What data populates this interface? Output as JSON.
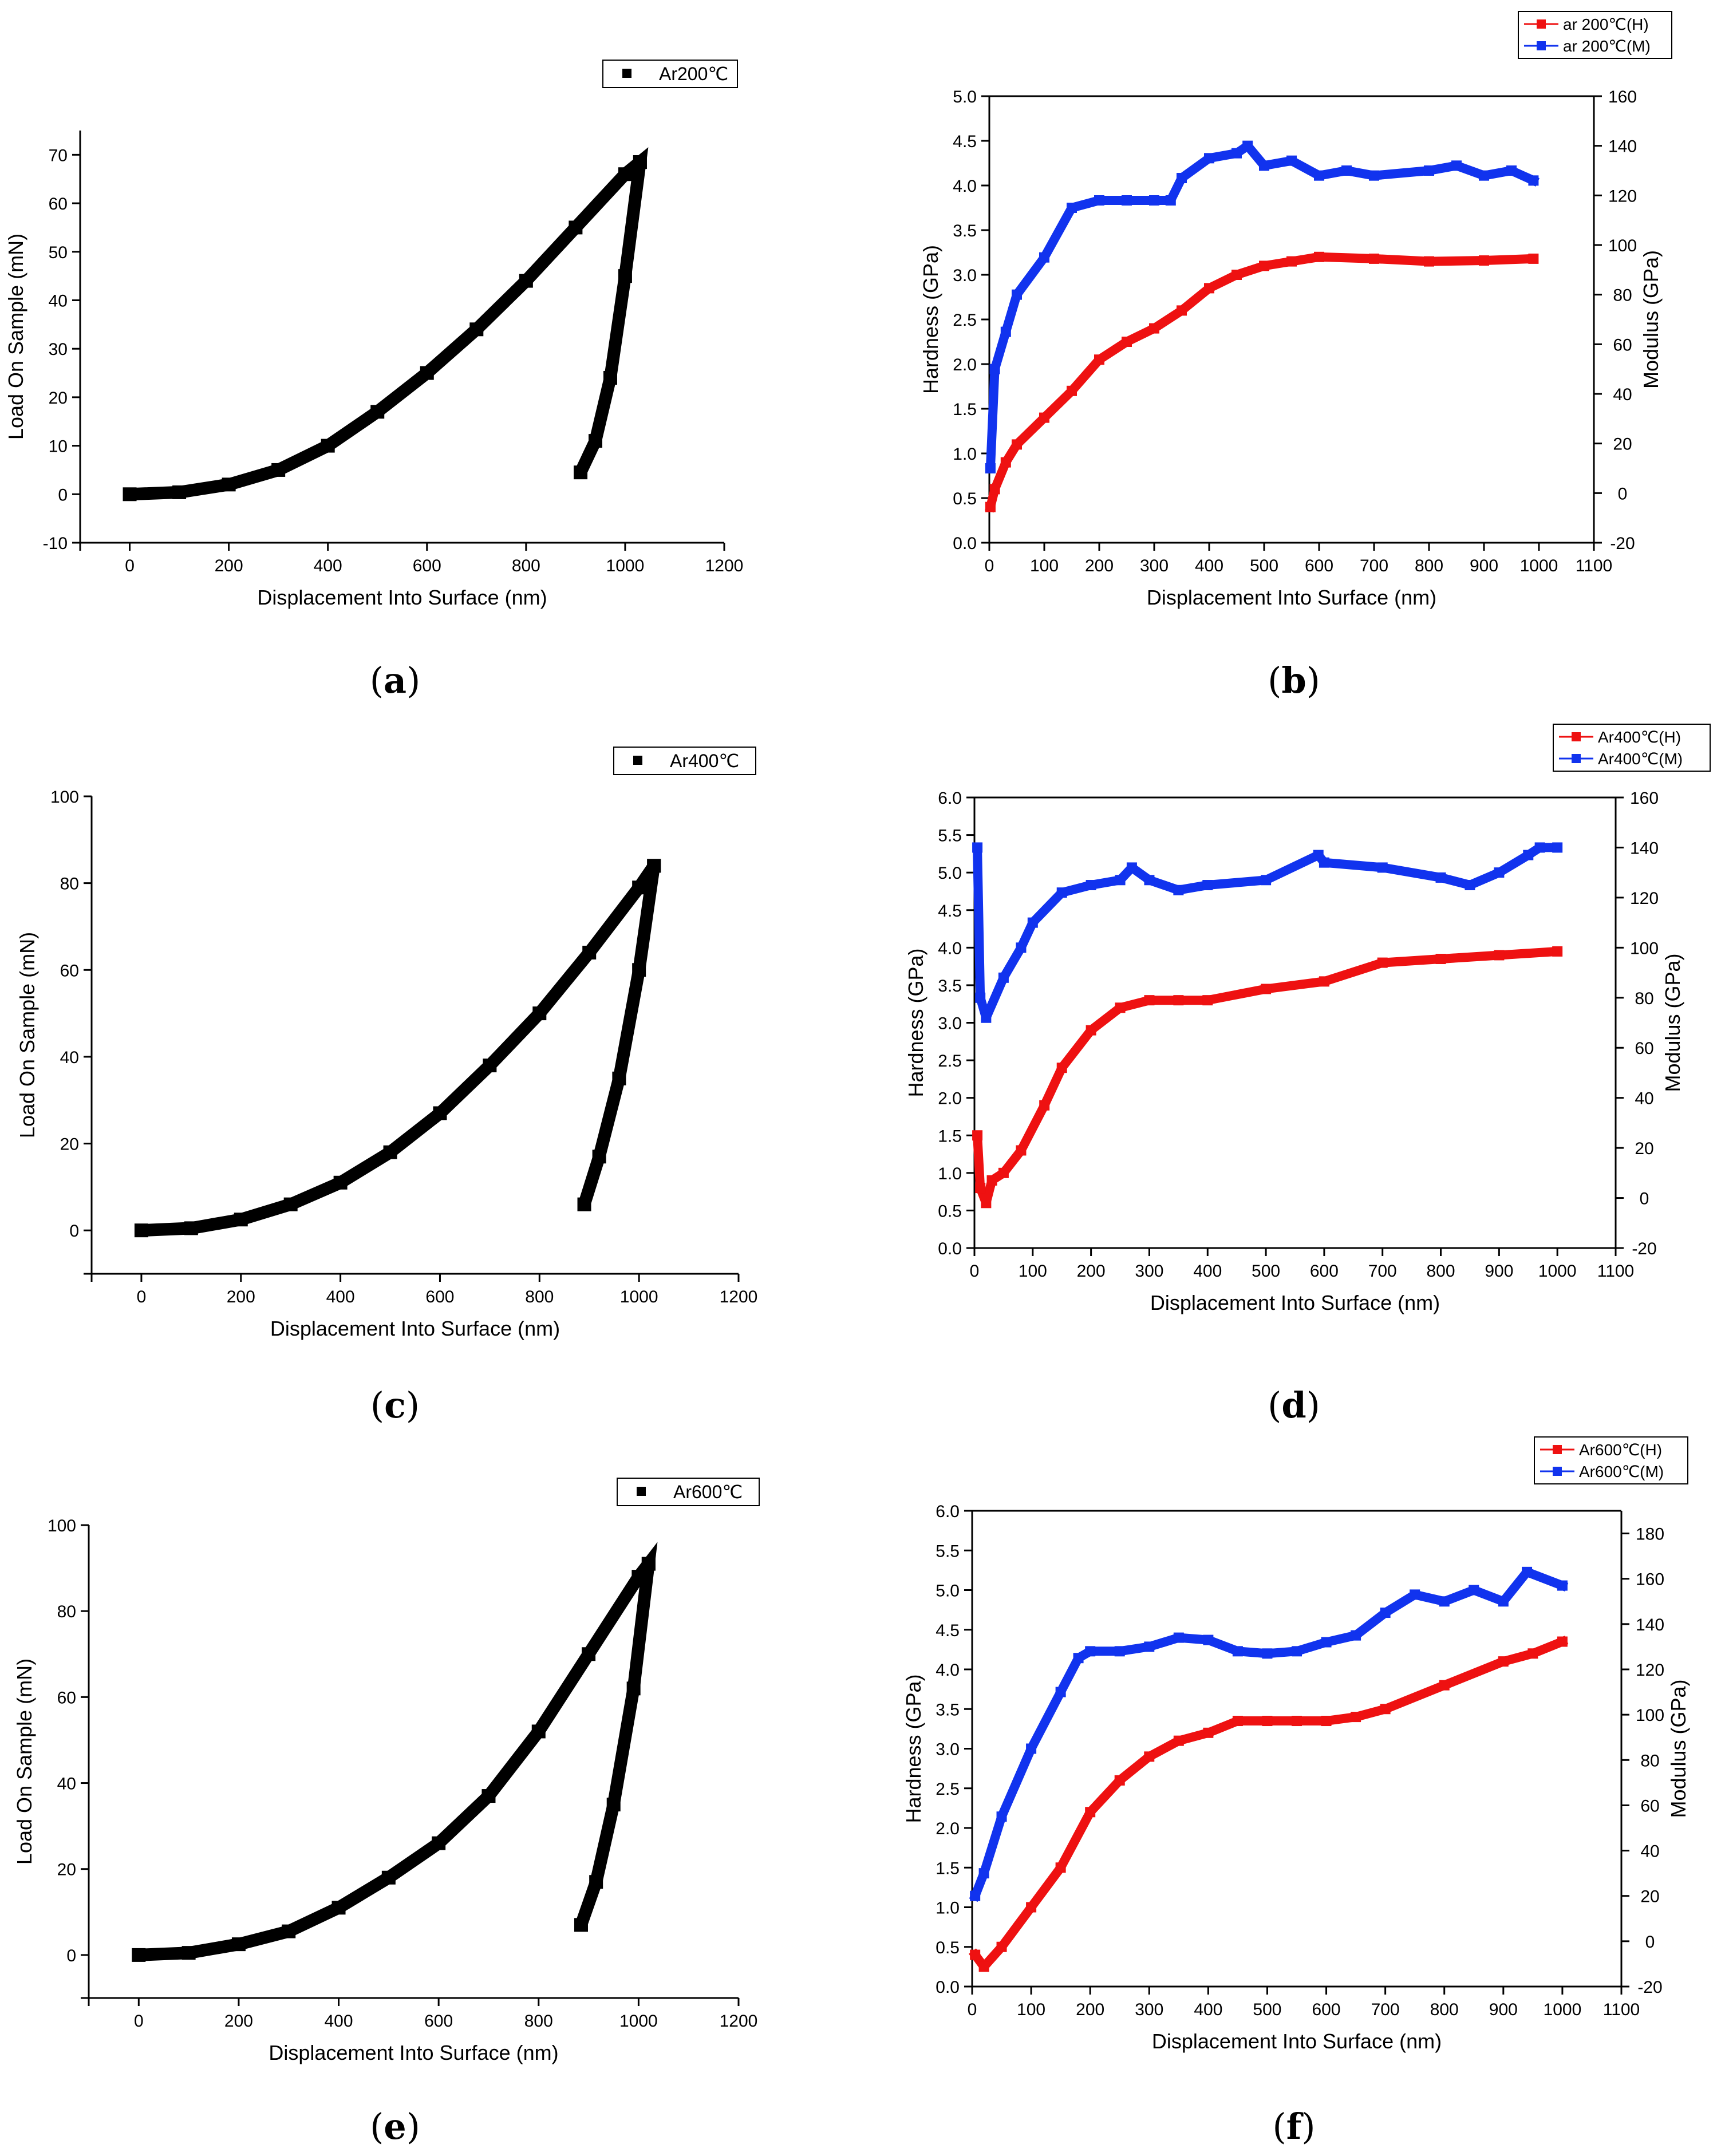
{
  "chart_data": [
    {
      "id": "a",
      "type": "line",
      "caption": "a",
      "xlabel": "Displacement Into Surface (nm)",
      "ylabel": "Load On Sample (mN)",
      "xlim": [
        -100,
        1200
      ],
      "ylim": [
        -10,
        75
      ],
      "xticks": [
        0,
        200,
        400,
        600,
        800,
        1000,
        1200
      ],
      "yticks": [
        -10,
        0,
        10,
        20,
        30,
        40,
        50,
        60,
        70
      ],
      "legend": [
        "Ar200℃"
      ],
      "legend_position": "top-right",
      "series": [
        {
          "name": "Ar200℃",
          "color": "#000000",
          "loading": {
            "x": [
              0,
              100,
              200,
              300,
              400,
              500,
              600,
              700,
              800,
              900,
              1000,
              1030
            ],
            "y": [
              0,
              0.4,
              2,
              5,
              10,
              17,
              25,
              34,
              44,
              55,
              66,
              68.5
            ]
          },
          "unloading": {
            "x": [
              1030,
              1000,
              970,
              940,
              910
            ],
            "y": [
              68.5,
              45,
              24,
              11,
              4.5
            ]
          }
        }
      ]
    },
    {
      "id": "b",
      "type": "line",
      "caption": "b",
      "xlabel": "Displacement Into Surface (nm)",
      "ylabel": "Hardness (GPa)",
      "ylabel2": "Modulus (GPa)",
      "xlim": [
        0,
        1100
      ],
      "ylim": [
        0,
        5.0
      ],
      "ylim2": [
        -20,
        160
      ],
      "xticks": [
        0,
        100,
        200,
        300,
        400,
        500,
        600,
        700,
        800,
        900,
        1000,
        1100
      ],
      "yticks": [
        0.0,
        0.5,
        1.0,
        1.5,
        2.0,
        2.5,
        3.0,
        3.5,
        4.0,
        4.5,
        5.0
      ],
      "yticks2": [
        -20,
        0,
        20,
        40,
        60,
        80,
        100,
        120,
        140,
        160
      ],
      "legend": [
        "ar 200℃(H)",
        "ar 200℃(M)"
      ],
      "legend_position": "top-right",
      "series": [
        {
          "name": "ar 200℃(H)",
          "axis": "left",
          "color": "#ee1111",
          "x": [
            2,
            10,
            30,
            50,
            100,
            150,
            200,
            250,
            300,
            350,
            400,
            450,
            500,
            550,
            600,
            700,
            800,
            900,
            990
          ],
          "y": [
            0.4,
            0.6,
            0.9,
            1.1,
            1.4,
            1.7,
            2.05,
            2.25,
            2.4,
            2.6,
            2.85,
            3.0,
            3.1,
            3.15,
            3.2,
            3.18,
            3.15,
            3.16,
            3.18
          ]
        },
        {
          "name": "ar 200℃(M)",
          "axis": "right",
          "color": "#1133ee",
          "x": [
            2,
            10,
            30,
            50,
            100,
            150,
            200,
            250,
            300,
            330,
            350,
            400,
            450,
            470,
            500,
            550,
            600,
            650,
            700,
            800,
            850,
            900,
            950,
            990
          ],
          "y": [
            10,
            50,
            65,
            80,
            95,
            115,
            118,
            118,
            118,
            118,
            127,
            135,
            137,
            140,
            132,
            134,
            128,
            130,
            128,
            130,
            132,
            128,
            130,
            126
          ]
        }
      ]
    },
    {
      "id": "c",
      "type": "line",
      "caption": "c",
      "xlabel": "Displacement Into Surface (nm)",
      "ylabel": "Load On Sample (mN)",
      "xlim": [
        -100,
        1200
      ],
      "ylim": [
        -10,
        100
      ],
      "xticks": [
        0,
        200,
        400,
        600,
        800,
        1000,
        1200
      ],
      "yticks": [
        0,
        20,
        40,
        60,
        80,
        100
      ],
      "legend": [
        "Ar400℃"
      ],
      "legend_position": "top-right",
      "series": [
        {
          "name": "Ar400℃",
          "color": "#000000",
          "loading": {
            "x": [
              0,
              100,
              200,
              300,
              400,
              500,
              600,
              700,
              800,
              900,
              1000,
              1030
            ],
            "y": [
              0,
              0.5,
              2.5,
              6,
              11,
              18,
              27,
              38,
              50,
              64,
              79,
              84
            ]
          },
          "unloading": {
            "x": [
              1030,
              1000,
              960,
              920,
              890
            ],
            "y": [
              84,
              60,
              35,
              17,
              6
            ]
          }
        }
      ]
    },
    {
      "id": "d",
      "type": "line",
      "caption": "d",
      "xlabel": "Displacement Into Surface (nm)",
      "ylabel": "Hardness (GPa)",
      "ylabel2": "Modulus (GPa)",
      "xlim": [
        0,
        1100
      ],
      "ylim": [
        0,
        6.0
      ],
      "ylim2": [
        -20,
        160
      ],
      "xticks": [
        0,
        100,
        200,
        300,
        400,
        500,
        600,
        700,
        800,
        900,
        1000,
        1100
      ],
      "yticks": [
        0.0,
        0.5,
        1.0,
        1.5,
        2.0,
        2.5,
        3.0,
        3.5,
        4.0,
        4.5,
        5.0,
        5.5,
        6.0
      ],
      "yticks2": [
        -20,
        0,
        20,
        40,
        60,
        80,
        100,
        120,
        140,
        160
      ],
      "legend": [
        "Ar400℃(H)",
        "Ar400℃(M)"
      ],
      "legend_position": "top-right",
      "series": [
        {
          "name": "Ar400℃(H)",
          "axis": "left",
          "color": "#ee1111",
          "x": [
            5,
            10,
            20,
            30,
            50,
            80,
            120,
            150,
            200,
            250,
            300,
            350,
            400,
            500,
            600,
            700,
            800,
            900,
            1000
          ],
          "y": [
            1.5,
            0.8,
            0.6,
            0.9,
            1.0,
            1.3,
            1.9,
            2.4,
            2.9,
            3.2,
            3.3,
            3.3,
            3.3,
            3.45,
            3.55,
            3.8,
            3.85,
            3.9,
            3.95
          ]
        },
        {
          "name": "Ar400℃(M)",
          "axis": "right",
          "color": "#1133ee",
          "x": [
            5,
            10,
            20,
            50,
            80,
            100,
            150,
            200,
            250,
            270,
            300,
            350,
            400,
            500,
            590,
            600,
            700,
            800,
            850,
            900,
            950,
            970,
            1000
          ],
          "y": [
            140,
            80,
            72,
            88,
            100,
            110,
            122,
            125,
            127,
            132,
            127,
            123,
            125,
            127,
            137,
            134,
            132,
            128,
            125,
            130,
            137,
            140,
            140
          ]
        }
      ]
    },
    {
      "id": "e",
      "type": "line",
      "caption": "e",
      "xlabel": "Displacement Into Surface (nm)",
      "ylabel": "Load On Sample (mN)",
      "xlim": [
        -100,
        1200
      ],
      "ylim": [
        -10,
        100
      ],
      "xticks": [
        0,
        200,
        400,
        600,
        800,
        1000,
        1200
      ],
      "yticks": [
        0,
        20,
        40,
        60,
        80,
        100
      ],
      "legend": [
        "Ar600℃"
      ],
      "legend_position": "top-right",
      "series": [
        {
          "name": "Ar600℃",
          "color": "#000000",
          "loading": {
            "x": [
              0,
              100,
              200,
              300,
              400,
              500,
              600,
              700,
              800,
              900,
              1000,
              1020
            ],
            "y": [
              0,
              0.5,
              2.5,
              5.5,
              11,
              18,
              26,
              37,
              52,
              70,
              88,
              91
            ]
          },
          "unloading": {
            "x": [
              1020,
              990,
              950,
              915,
              885
            ],
            "y": [
              91,
              62,
              35,
              17,
              7
            ]
          }
        }
      ]
    },
    {
      "id": "f",
      "type": "line",
      "caption": "f",
      "xlabel": "Displacement Into Surface (nm)",
      "ylabel": "Hardness (GPa)",
      "ylabel2": "Modulus (GPa)",
      "xlim": [
        0,
        1100
      ],
      "ylim": [
        0,
        6.0
      ],
      "ylim2": [
        -20,
        190
      ],
      "xticks": [
        0,
        100,
        200,
        300,
        400,
        500,
        600,
        700,
        800,
        900,
        1000,
        1100
      ],
      "yticks": [
        0.0,
        0.5,
        1.0,
        1.5,
        2.0,
        2.5,
        3.0,
        3.5,
        4.0,
        4.5,
        5.0,
        5.5,
        6.0
      ],
      "yticks2": [
        -20,
        0,
        20,
        40,
        60,
        80,
        100,
        120,
        140,
        160,
        180
      ],
      "legend": [
        "Ar600℃(H)",
        "Ar600℃(M)"
      ],
      "legend_position": "top-right",
      "series": [
        {
          "name": "Ar600℃(H)",
          "axis": "left",
          "color": "#ee1111",
          "x": [
            5,
            20,
            50,
            100,
            150,
            200,
            250,
            300,
            350,
            400,
            450,
            500,
            550,
            600,
            650,
            700,
            800,
            900,
            950,
            1000
          ],
          "y": [
            0.4,
            0.25,
            0.5,
            1.0,
            1.5,
            2.2,
            2.6,
            2.9,
            3.1,
            3.2,
            3.35,
            3.35,
            3.35,
            3.35,
            3.4,
            3.5,
            3.8,
            4.1,
            4.2,
            4.35
          ]
        },
        {
          "name": "Ar600℃(M)",
          "axis": "right",
          "color": "#1133ee",
          "x": [
            5,
            20,
            50,
            100,
            150,
            180,
            200,
            250,
            300,
            350,
            400,
            450,
            500,
            550,
            600,
            650,
            700,
            750,
            800,
            850,
            900,
            940,
            1000
          ],
          "y": [
            20,
            30,
            55,
            85,
            110,
            125,
            128,
            128,
            130,
            134,
            133,
            128,
            127,
            128,
            132,
            135,
            145,
            153,
            150,
            155,
            150,
            163,
            157
          ]
        }
      ]
    }
  ]
}
